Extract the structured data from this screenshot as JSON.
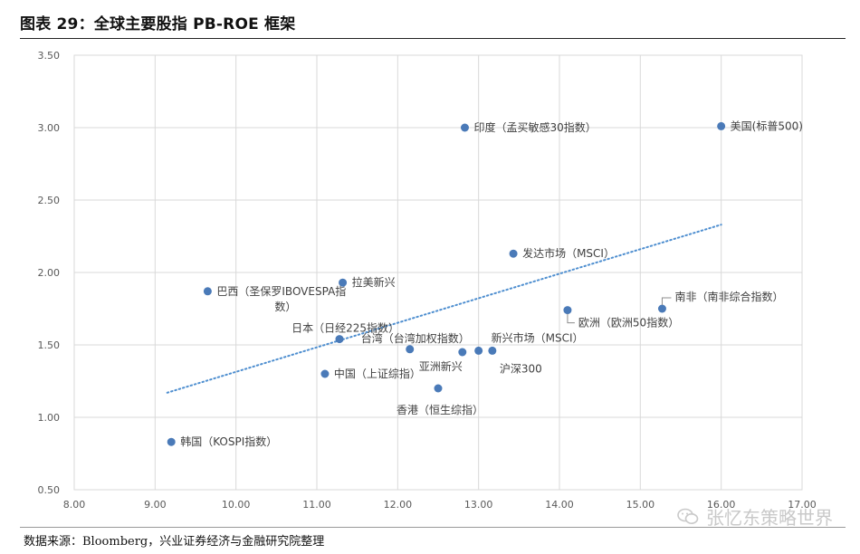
{
  "header": {
    "title": "图表 29：全球主要股指 PB-ROE 框架"
  },
  "footer": {
    "source": "数据来源：Bloomberg，兴业证券经济与金融研究院整理"
  },
  "watermark": {
    "text": "张忆东策略世界"
  },
  "colors": {
    "point": "#4a7ab8",
    "trendline": "#4f8fd0",
    "grid": "#d9d9d9",
    "axis_text": "#595959",
    "label_text": "#404040"
  },
  "chart_data": {
    "type": "scatter",
    "title": "全球主要股指 PB-ROE 框架",
    "xlabel": "",
    "ylabel": "",
    "xlim": [
      8.0,
      17.0
    ],
    "ylim": [
      0.5,
      3.5
    ],
    "x_ticks": [
      "8.00",
      "9.00",
      "10.00",
      "11.00",
      "12.00",
      "13.00",
      "14.00",
      "15.00",
      "16.00",
      "17.00"
    ],
    "y_ticks": [
      "0.50",
      "1.00",
      "1.50",
      "2.00",
      "2.50",
      "3.00",
      "3.50"
    ],
    "grid": true,
    "points": [
      {
        "label": "美国(标普500)",
        "x": 16.0,
        "y": 3.01,
        "pos": "right"
      },
      {
        "label": "印度（孟买敏感30指数）",
        "x": 12.83,
        "y": 3.0,
        "pos": "right"
      },
      {
        "label": "发达市场（MSCI）",
        "x": 13.43,
        "y": 2.13,
        "pos": "right"
      },
      {
        "label": "巴西（圣保罗IBOVESPA指",
        "label2": "数）",
        "x": 9.65,
        "y": 1.87,
        "pos": "right"
      },
      {
        "label": "拉美新兴",
        "x": 11.32,
        "y": 1.93,
        "pos": "right"
      },
      {
        "label": "南非（南非综合指数）",
        "x": 15.27,
        "y": 1.75,
        "pos": "upright"
      },
      {
        "label": "欧洲（欧洲50指数）",
        "x": 14.1,
        "y": 1.74,
        "pos": "rightbelow"
      },
      {
        "label": "日本（日经225指数）",
        "x": 11.28,
        "y": 1.54,
        "pos": "upleft"
      },
      {
        "label": "台湾（台湾加权指数）",
        "x": 12.15,
        "y": 1.47,
        "pos": "upleft"
      },
      {
        "label": "亚洲新兴",
        "x": 12.8,
        "y": 1.45,
        "pos": "belowleft"
      },
      {
        "label": "新兴市场（MSCI）",
        "x": 13.0,
        "y": 1.46,
        "pos": "upright"
      },
      {
        "label": "沪深300",
        "x": 13.17,
        "y": 1.46,
        "pos": "below"
      },
      {
        "label": "中国（上证综指）",
        "x": 11.1,
        "y": 1.3,
        "pos": "right"
      },
      {
        "label": "香港（恒生综指）",
        "x": 12.5,
        "y": 1.2,
        "pos": "below"
      },
      {
        "label": "韩国（KOSPI指数）",
        "x": 9.2,
        "y": 0.83,
        "pos": "right"
      }
    ],
    "trendline": {
      "style": "dotted",
      "x": [
        9.15,
        16.0
      ],
      "y": [
        1.17,
        2.33
      ]
    }
  }
}
